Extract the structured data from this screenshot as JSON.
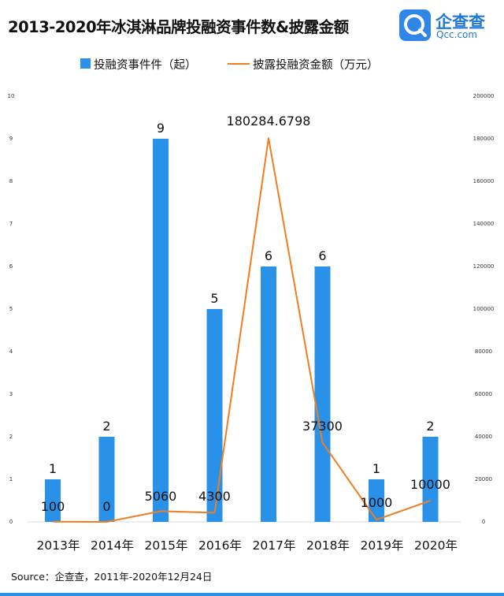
{
  "title": "2013-2020年冰淇淋品牌投融资事件数&披露金额",
  "logo": {
    "name": "企查查",
    "domain": "Qcc.com",
    "icon": "qcc-logo-icon"
  },
  "source": "Source：企查查，2011年-2020年12月24日",
  "colors": {
    "bar": "#2a91e8",
    "line": "#f07d22",
    "logo": "#2f86e8"
  },
  "chart_data": {
    "type": "bar",
    "categories": [
      "2013年",
      "2014年",
      "2015年",
      "2016年",
      "2017年",
      "2018年",
      "2019年",
      "2020年"
    ],
    "series": [
      {
        "name": "投融资事件件（起）",
        "type": "bar",
        "axis": "left",
        "values": [
          1,
          2,
          9,
          5,
          6,
          6,
          1,
          2
        ],
        "labels": [
          "1",
          "2",
          "9",
          "5",
          "6",
          "6",
          "1",
          "2"
        ]
      },
      {
        "name": "披露投融资金额（万元）",
        "type": "line",
        "axis": "right",
        "values": [
          100,
          0,
          5060,
          4300,
          180284.6798,
          37300,
          1000,
          10000
        ],
        "labels": [
          "100",
          "0",
          "5060",
          "4300",
          "180284.6798",
          "37300",
          "1000",
          "10000"
        ]
      }
    ],
    "y_left": {
      "ylim": [
        0,
        10
      ],
      "ticks": [
        "0",
        "1",
        "2",
        "3",
        "4",
        "5",
        "6",
        "7",
        "8",
        "9",
        "10"
      ]
    },
    "y_right": {
      "ylim": [
        0,
        200000
      ],
      "ticks": [
        "0",
        "20000",
        "40000",
        "60000",
        "80000",
        "100000",
        "120000",
        "140000",
        "160000",
        "180000",
        "200000"
      ]
    },
    "grid": false,
    "legend": "top"
  }
}
